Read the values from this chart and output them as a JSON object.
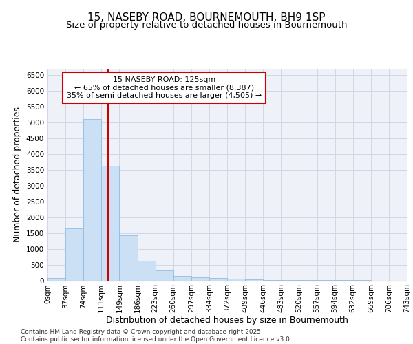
{
  "title": "15, NASEBY ROAD, BOURNEMOUTH, BH9 1SP",
  "subtitle": "Size of property relative to detached houses in Bournemouth",
  "xlabel": "Distribution of detached houses by size in Bournemouth",
  "ylabel": "Number of detached properties",
  "bar_values": [
    75,
    1650,
    5100,
    3620,
    1430,
    620,
    310,
    150,
    100,
    70,
    55,
    30,
    15,
    10,
    5,
    3,
    2,
    1,
    0,
    0
  ],
  "bin_labels": [
    "0sqm",
    "37sqm",
    "74sqm",
    "111sqm",
    "149sqm",
    "186sqm",
    "223sqm",
    "260sqm",
    "297sqm",
    "334sqm",
    "372sqm",
    "409sqm",
    "446sqm",
    "483sqm",
    "520sqm",
    "557sqm",
    "594sqm",
    "632sqm",
    "669sqm",
    "706sqm",
    "743sqm"
  ],
  "bar_color": "#cce0f5",
  "bar_edge_color": "#90bde0",
  "bar_width": 1.0,
  "ylim": [
    0,
    6700
  ],
  "yticks": [
    0,
    500,
    1000,
    1500,
    2000,
    2500,
    3000,
    3500,
    4000,
    4500,
    5000,
    5500,
    6000,
    6500
  ],
  "annotation_box_text": "15 NASEBY ROAD: 125sqm\n← 65% of detached houses are smaller (8,387)\n35% of semi-detached houses are larger (4,505) →",
  "annotation_box_color": "#ffffff",
  "annotation_box_edge_color": "#cc0000",
  "property_line_x": 3.378,
  "property_line_color": "#cc0000",
  "grid_color": "#d0d8e8",
  "background_color": "#eef2f8",
  "footnote": "Contains HM Land Registry data © Crown copyright and database right 2025.\nContains public sector information licensed under the Open Government Licence v3.0.",
  "title_fontsize": 11,
  "subtitle_fontsize": 9.5,
  "axis_label_fontsize": 9,
  "tick_fontsize": 7.5,
  "annotation_fontsize": 8,
  "footnote_fontsize": 6.5
}
